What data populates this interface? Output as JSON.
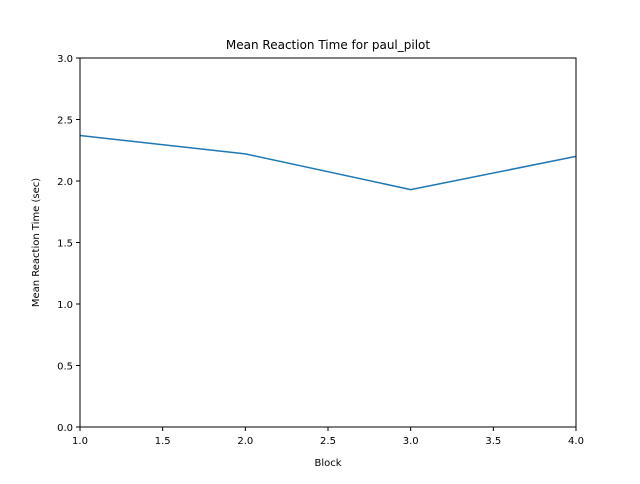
{
  "chart_data": {
    "type": "line",
    "title": "Mean Reaction Time for paul_pilot",
    "xlabel": "Block",
    "ylabel": "Mean Reaction Time (sec)",
    "xlim": [
      1.0,
      4.0
    ],
    "ylim": [
      0.0,
      3.0
    ],
    "xticks": [
      1.0,
      1.5,
      2.0,
      2.5,
      3.0,
      3.5,
      4.0
    ],
    "yticks": [
      0.0,
      0.5,
      1.0,
      1.5,
      2.0,
      2.5,
      3.0
    ],
    "xtick_labels": [
      "1.0",
      "1.5",
      "2.0",
      "2.5",
      "3.0",
      "3.5",
      "4.0"
    ],
    "ytick_labels": [
      "0.0",
      "0.5",
      "1.0",
      "1.5",
      "2.0",
      "2.5",
      "3.0"
    ],
    "grid": false,
    "series": [
      {
        "color": "#1f77b4",
        "x": [
          1,
          2,
          3,
          4
        ],
        "y": [
          2.37,
          2.22,
          1.93,
          2.2
        ]
      }
    ]
  }
}
